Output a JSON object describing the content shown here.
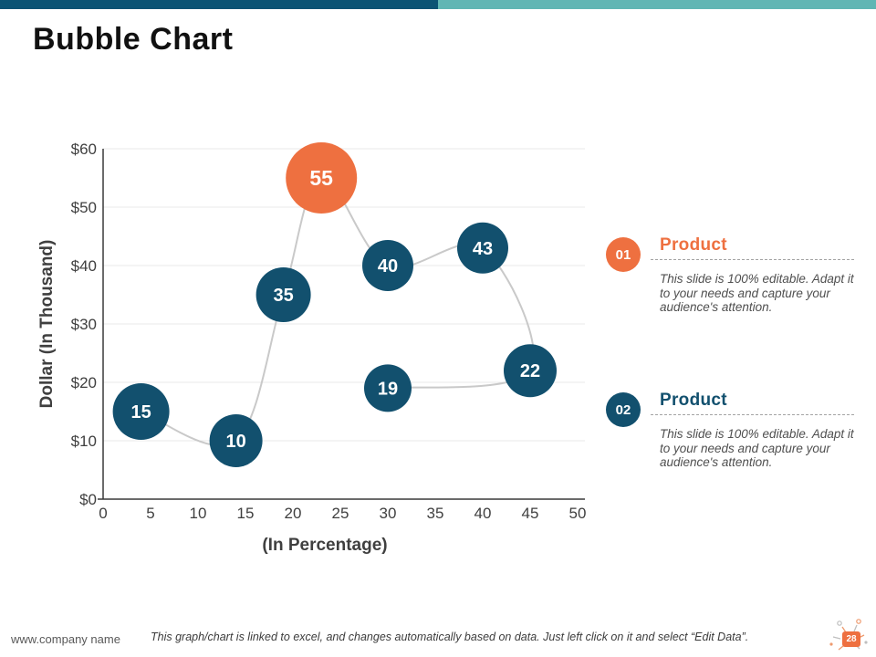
{
  "slide": {
    "title": "Bubble Chart",
    "page_number": "28"
  },
  "colors": {
    "accent_orange": "#EE7040",
    "accent_navy": "#12506E",
    "topbar_dark_teal": "#0B5374",
    "topbar_light_teal": "#61B6B4",
    "grid_line": "#E8E8E8",
    "connector_line": "#C9C9C9",
    "axis_line": "#3A3A3A",
    "axis_text": "#3F3F3F"
  },
  "chart_data": {
    "type": "bubble",
    "title": "Bubble Chart",
    "x_axis": {
      "label": "(In Percentage)",
      "min": 0,
      "max": 50,
      "tick_step": 5,
      "tick_labels": [
        "0",
        "5",
        "10",
        "15",
        "20",
        "25",
        "30",
        "35",
        "40",
        "45",
        "50"
      ]
    },
    "y_axis": {
      "label": "Dollar  (In Thousand)",
      "min": 0,
      "max": 60,
      "tick_step": 10,
      "tick_labels": [
        "$0",
        "$10",
        "$20",
        "$30",
        "$40",
        "$50",
        "$60"
      ]
    },
    "grid": "horizontal",
    "legend": "none",
    "connected_in_order": true,
    "points": [
      {
        "x": 4,
        "y": 15,
        "label": "15",
        "r": 31,
        "color": "navy"
      },
      {
        "x": 14,
        "y": 10,
        "label": "10",
        "r": 29,
        "color": "navy"
      },
      {
        "x": 19,
        "y": 35,
        "label": "35",
        "r": 30,
        "color": "navy"
      },
      {
        "x": 23,
        "y": 55,
        "label": "55",
        "r": 39,
        "color": "orange"
      },
      {
        "x": 30,
        "y": 40,
        "label": "40",
        "r": 28,
        "color": "navy"
      },
      {
        "x": 40,
        "y": 43,
        "label": "43",
        "r": 28,
        "color": "navy"
      },
      {
        "x": 45,
        "y": 22,
        "label": "22",
        "r": 29,
        "color": "navy"
      },
      {
        "x": 30,
        "y": 19,
        "label": "19",
        "r": 26,
        "color": "navy"
      }
    ]
  },
  "products": [
    {
      "number": "01",
      "title": "Product",
      "description": "This slide is 100% editable. Adapt it to your needs and capture your audience's attention."
    },
    {
      "number": "02",
      "title": "Product",
      "description": "This slide is 100% editable. Adapt it to your needs and capture your audience's attention."
    }
  ],
  "footer": {
    "company": "www.company name",
    "note": "This graph/chart is linked to excel, and changes automatically based on data. Just left click on it and select “Edit Data”."
  }
}
